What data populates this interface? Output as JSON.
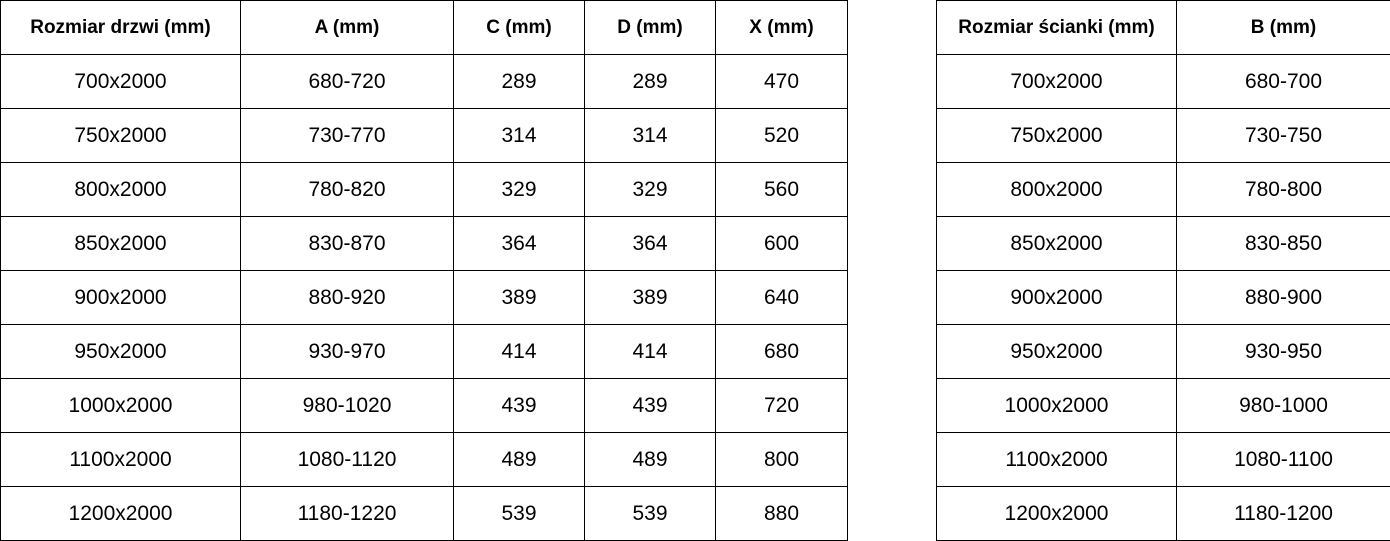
{
  "doors_table": {
    "headers": [
      "Rozmiar drzwi (mm)",
      "A (mm)",
      "C (mm)",
      "D (mm)",
      "X (mm)"
    ],
    "rows": [
      [
        "700x2000",
        "680-720",
        "289",
        "289",
        "470"
      ],
      [
        "750x2000",
        "730-770",
        "314",
        "314",
        "520"
      ],
      [
        "800x2000",
        "780-820",
        "329",
        "329",
        "560"
      ],
      [
        "850x2000",
        "830-870",
        "364",
        "364",
        "600"
      ],
      [
        "900x2000",
        "880-920",
        "389",
        "389",
        "640"
      ],
      [
        "950x2000",
        "930-970",
        "414",
        "414",
        "680"
      ],
      [
        "1000x2000",
        "980-1020",
        "439",
        "439",
        "720"
      ],
      [
        "1100x2000",
        "1080-1120",
        "489",
        "489",
        "800"
      ],
      [
        "1200x2000",
        "1180-1220",
        "539",
        "539",
        "880"
      ]
    ]
  },
  "wall_table": {
    "headers": [
      "Rozmiar ścianki (mm)",
      "B (mm)"
    ],
    "rows": [
      [
        "700x2000",
        "680-700"
      ],
      [
        "750x2000",
        "730-750"
      ],
      [
        "800x2000",
        "780-800"
      ],
      [
        "850x2000",
        "830-850"
      ],
      [
        "900x2000",
        "880-900"
      ],
      [
        "950x2000",
        "930-950"
      ],
      [
        "1000x2000",
        "980-1000"
      ],
      [
        "1100x2000",
        "1080-1100"
      ],
      [
        "1200x2000",
        "1180-1200"
      ]
    ]
  }
}
